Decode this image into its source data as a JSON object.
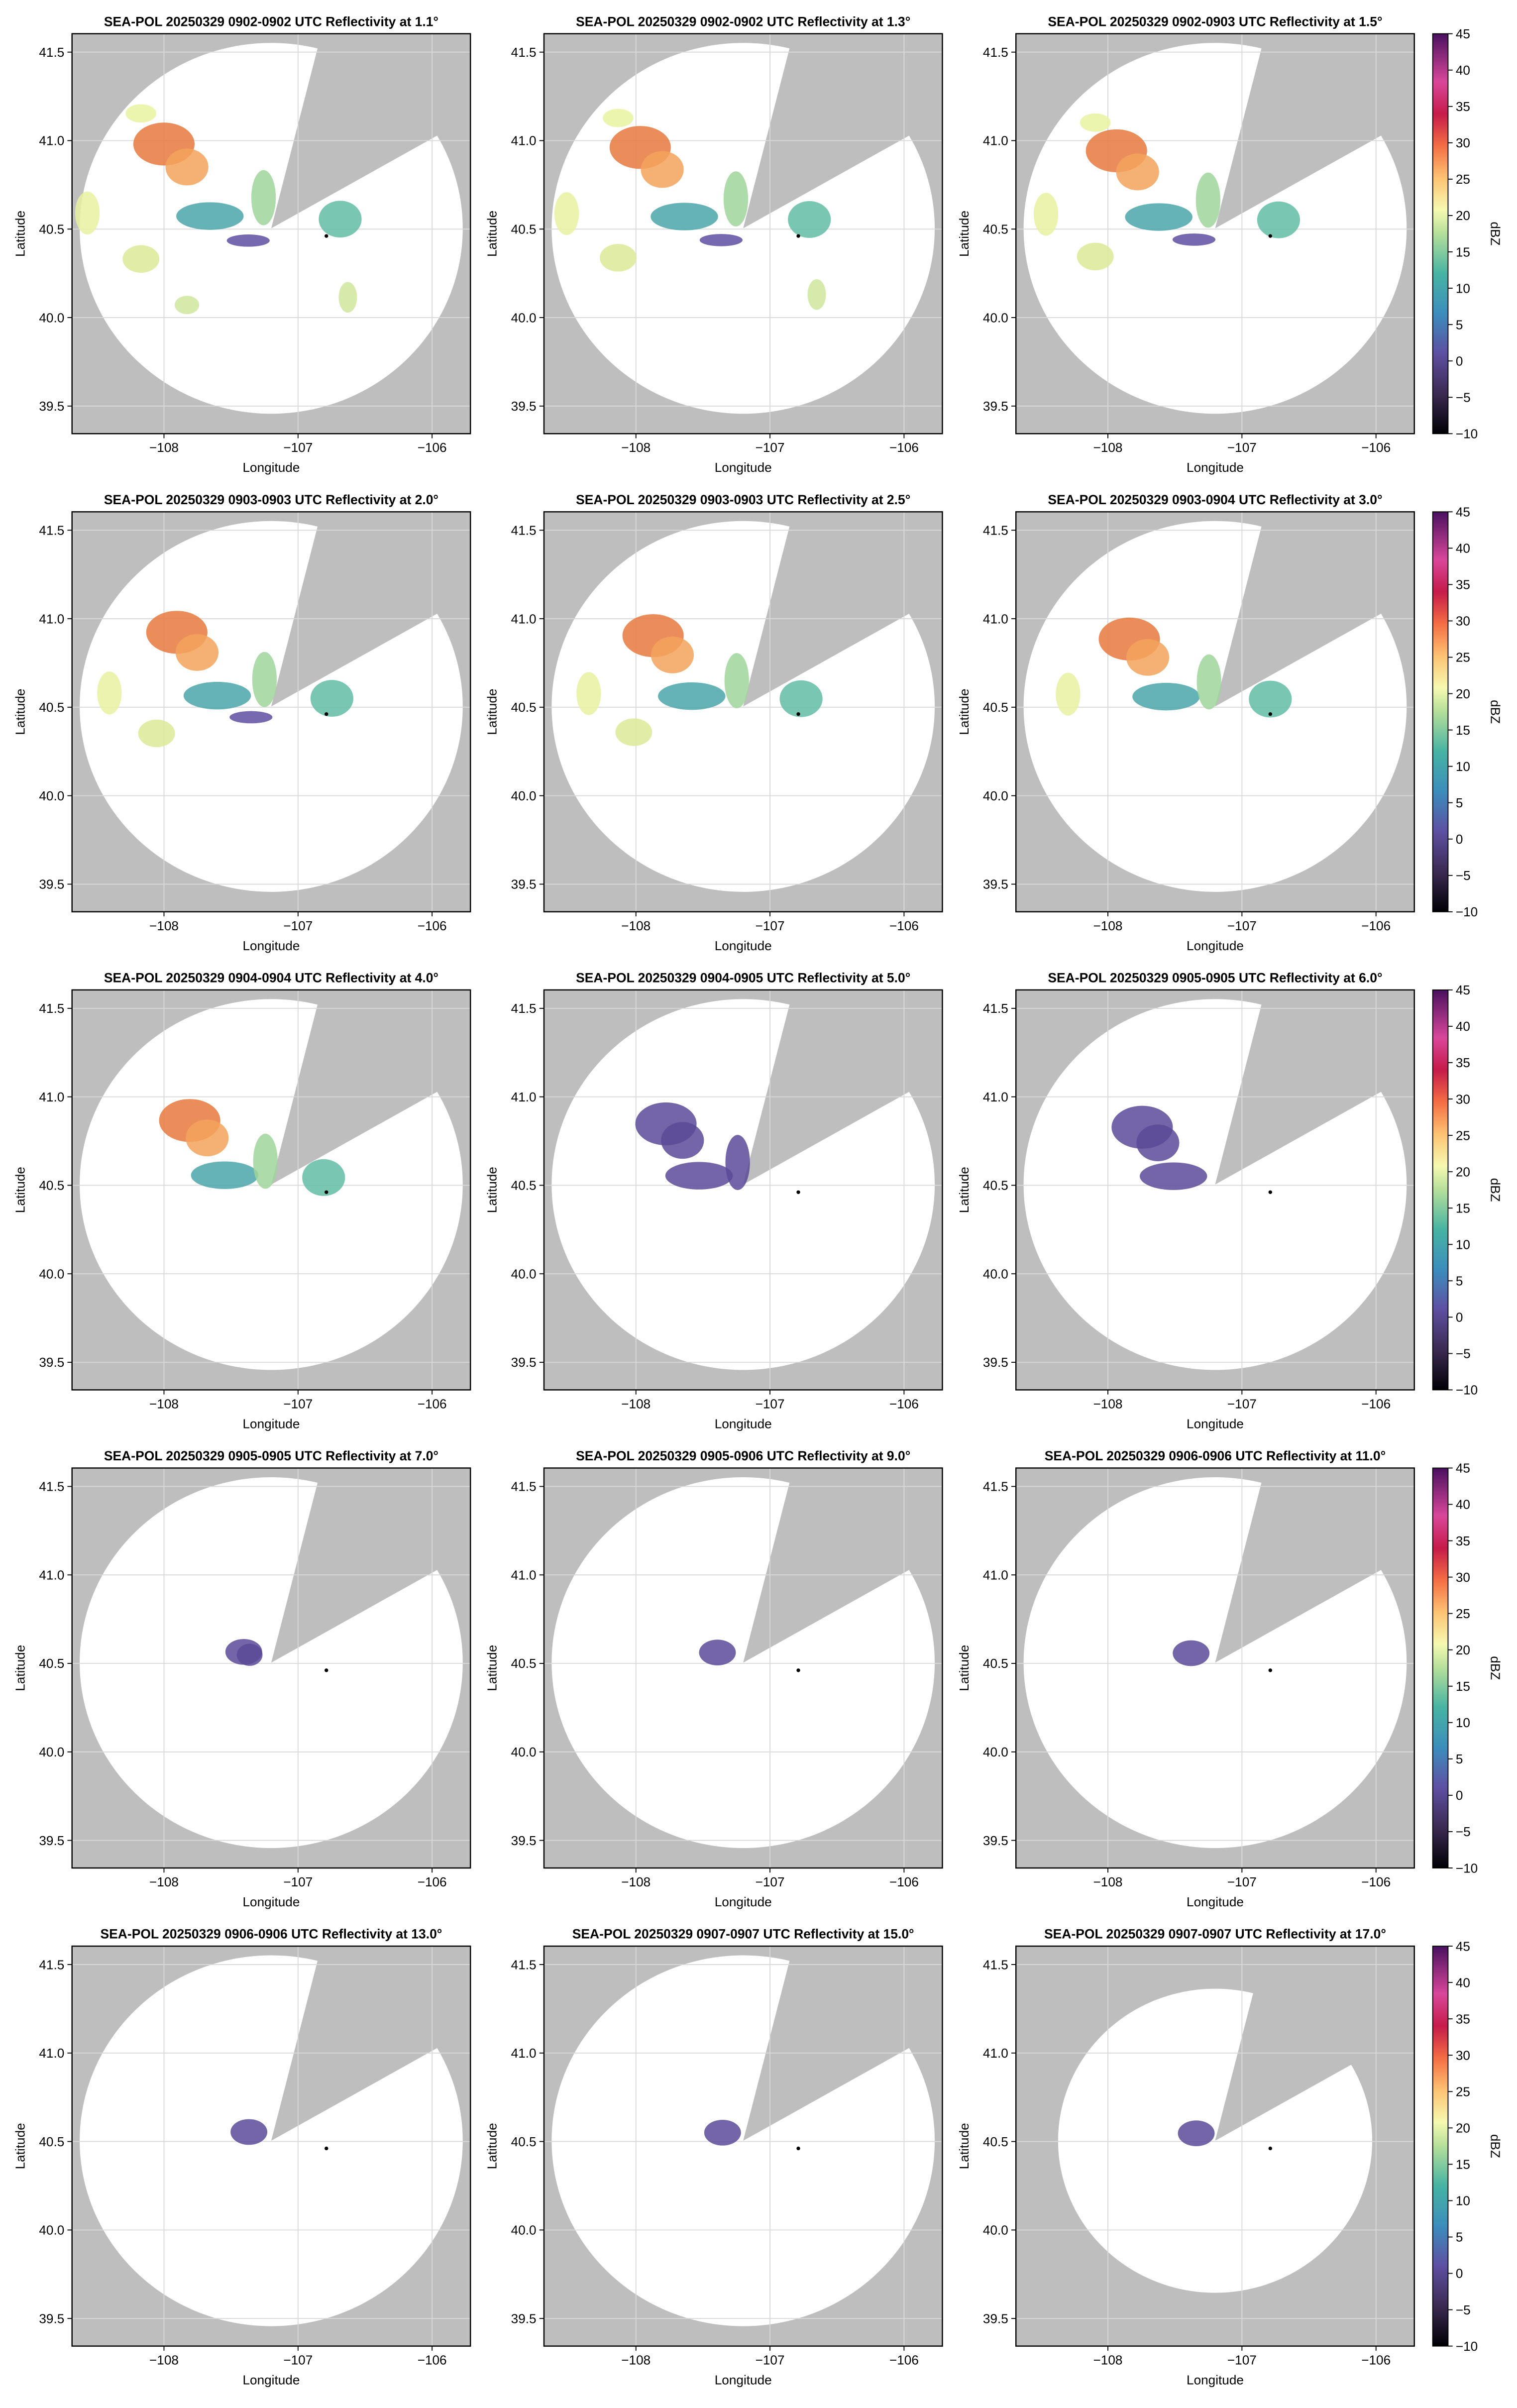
{
  "chart_data": [
    {
      "type": "radar",
      "title": "SEA-POL 20250329 0902-0902 UTC Reflectivity at 1.1°",
      "x_label": "Longitude",
      "y_label": "Latitude",
      "xlim": [
        -108.686,
        -105.714
      ],
      "ylim": [
        39.344,
        41.604
      ],
      "xticks": [
        {
          "value": -108,
          "label": "−108"
        },
        {
          "value": -107,
          "label": "−107"
        },
        {
          "value": -106,
          "label": "−106"
        }
      ],
      "yticks": [
        39.5,
        {
          "value": 40,
          "label": "40.0"
        },
        40.5,
        {
          "value": 41,
          "label": "41.0"
        },
        41.5
      ],
      "grid": true
    },
    {
      "type": "radar",
      "title": "SEA-POL 20250329 0902-0902 UTC Reflectivity at 1.3°",
      "x_label": "Longitude",
      "y_label": "Latitude",
      "xlim": [
        -108.686,
        -105.714
      ],
      "ylim": [
        39.344,
        41.604
      ],
      "xticks": [
        {
          "value": -108,
          "label": "−108"
        },
        {
          "value": -107,
          "label": "−107"
        },
        {
          "value": -106,
          "label": "−106"
        }
      ],
      "yticks": [
        39.5,
        {
          "value": 40,
          "label": "40.0"
        },
        40.5,
        {
          "value": 41,
          "label": "41.0"
        },
        41.5
      ],
      "grid": true
    },
    {
      "type": "radar",
      "title": "SEA-POL 20250329 0902-0903 UTC Reflectivity at 1.5°",
      "x_label": "Longitude",
      "y_label": "Latitude",
      "xlim": [
        -108.686,
        -105.714
      ],
      "ylim": [
        39.344,
        41.604
      ],
      "xticks": [
        {
          "value": -108,
          "label": "−108"
        },
        {
          "value": -107,
          "label": "−107"
        },
        {
          "value": -106,
          "label": "−106"
        }
      ],
      "yticks": [
        39.5,
        {
          "value": 40,
          "label": "40.0"
        },
        40.5,
        {
          "value": 41,
          "label": "41.0"
        },
        41.5
      ],
      "grid": true,
      "colorbar": {
        "label": "dBZ",
        "lim": [
          -10,
          45
        ],
        "ticks": [
          {
            "value": -10,
            "label": "−10"
          },
          {
            "value": -5,
            "label": "−5"
          },
          0,
          5,
          10,
          15,
          20,
          25,
          30,
          35,
          40,
          45
        ]
      }
    },
    {
      "type": "radar",
      "title": "SEA-POL 20250329 0903-0903 UTC Reflectivity at 2.0°",
      "x_label": "Longitude",
      "y_label": "Latitude",
      "xlim": [
        -108.686,
        -105.714
      ],
      "ylim": [
        39.344,
        41.604
      ],
      "xticks": [
        {
          "value": -108,
          "label": "−108"
        },
        {
          "value": -107,
          "label": "−107"
        },
        {
          "value": -106,
          "label": "−106"
        }
      ],
      "yticks": [
        39.5,
        {
          "value": 40,
          "label": "40.0"
        },
        40.5,
        {
          "value": 41,
          "label": "41.0"
        },
        41.5
      ],
      "grid": true
    },
    {
      "type": "radar",
      "title": "SEA-POL 20250329 0903-0903 UTC Reflectivity at 2.5°",
      "x_label": "Longitude",
      "y_label": "Latitude",
      "xlim": [
        -108.686,
        -105.714
      ],
      "ylim": [
        39.344,
        41.604
      ],
      "xticks": [
        {
          "value": -108,
          "label": "−108"
        },
        {
          "value": -107,
          "label": "−107"
        },
        {
          "value": -106,
          "label": "−106"
        }
      ],
      "yticks": [
        39.5,
        {
          "value": 40,
          "label": "40.0"
        },
        40.5,
        {
          "value": 41,
          "label": "41.0"
        },
        41.5
      ],
      "grid": true
    },
    {
      "type": "radar",
      "title": "SEA-POL 20250329 0903-0904 UTC Reflectivity at 3.0°",
      "x_label": "Longitude",
      "y_label": "Latitude",
      "xlim": [
        -108.686,
        -105.714
      ],
      "ylim": [
        39.344,
        41.604
      ],
      "xticks": [
        {
          "value": -108,
          "label": "−108"
        },
        {
          "value": -107,
          "label": "−107"
        },
        {
          "value": -106,
          "label": "−106"
        }
      ],
      "yticks": [
        39.5,
        {
          "value": 40,
          "label": "40.0"
        },
        40.5,
        {
          "value": 41,
          "label": "41.0"
        },
        41.5
      ],
      "grid": true,
      "colorbar": {
        "label": "dBZ",
        "lim": [
          -10,
          45
        ],
        "ticks": [
          {
            "value": -10,
            "label": "−10"
          },
          {
            "value": -5,
            "label": "−5"
          },
          0,
          5,
          10,
          15,
          20,
          25,
          30,
          35,
          40,
          45
        ]
      }
    },
    {
      "type": "radar",
      "title": "SEA-POL 20250329 0904-0904 UTC Reflectivity at 4.0°",
      "x_label": "Longitude",
      "y_label": "Latitude",
      "xlim": [
        -108.686,
        -105.714
      ],
      "ylim": [
        39.344,
        41.604
      ],
      "xticks": [
        {
          "value": -108,
          "label": "−108"
        },
        {
          "value": -107,
          "label": "−107"
        },
        {
          "value": -106,
          "label": "−106"
        }
      ],
      "yticks": [
        39.5,
        {
          "value": 40,
          "label": "40.0"
        },
        40.5,
        {
          "value": 41,
          "label": "41.0"
        },
        41.5
      ],
      "grid": true
    },
    {
      "type": "radar",
      "title": "SEA-POL 20250329 0904-0905 UTC Reflectivity at 5.0°",
      "x_label": "Longitude",
      "y_label": "Latitude",
      "xlim": [
        -108.686,
        -105.714
      ],
      "ylim": [
        39.344,
        41.604
      ],
      "xticks": [
        {
          "value": -108,
          "label": "−108"
        },
        {
          "value": -107,
          "label": "−107"
        },
        {
          "value": -106,
          "label": "−106"
        }
      ],
      "yticks": [
        39.5,
        {
          "value": 40,
          "label": "40.0"
        },
        40.5,
        {
          "value": 41,
          "label": "41.0"
        },
        41.5
      ],
      "grid": true
    },
    {
      "type": "radar",
      "title": "SEA-POL 20250329 0905-0905 UTC Reflectivity at 6.0°",
      "x_label": "Longitude",
      "y_label": "Latitude",
      "xlim": [
        -108.686,
        -105.714
      ],
      "ylim": [
        39.344,
        41.604
      ],
      "xticks": [
        {
          "value": -108,
          "label": "−108"
        },
        {
          "value": -107,
          "label": "−107"
        },
        {
          "value": -106,
          "label": "−106"
        }
      ],
      "yticks": [
        39.5,
        {
          "value": 40,
          "label": "40.0"
        },
        40.5,
        {
          "value": 41,
          "label": "41.0"
        },
        41.5
      ],
      "grid": true,
      "colorbar": {
        "label": "dBZ",
        "lim": [
          -10,
          45
        ],
        "ticks": [
          {
            "value": -10,
            "label": "−10"
          },
          {
            "value": -5,
            "label": "−5"
          },
          0,
          5,
          10,
          15,
          20,
          25,
          30,
          35,
          40,
          45
        ]
      }
    },
    {
      "type": "radar",
      "title": "SEA-POL 20250329 0905-0905 UTC Reflectivity at 7.0°",
      "x_label": "Longitude",
      "y_label": "Latitude",
      "xlim": [
        -108.686,
        -105.714
      ],
      "ylim": [
        39.344,
        41.604
      ],
      "xticks": [
        {
          "value": -108,
          "label": "−108"
        },
        {
          "value": -107,
          "label": "−107"
        },
        {
          "value": -106,
          "label": "−106"
        }
      ],
      "yticks": [
        39.5,
        {
          "value": 40,
          "label": "40.0"
        },
        40.5,
        {
          "value": 41,
          "label": "41.0"
        },
        41.5
      ],
      "grid": true
    },
    {
      "type": "radar",
      "title": "SEA-POL 20250329 0905-0906 UTC Reflectivity at 9.0°",
      "x_label": "Longitude",
      "y_label": "Latitude",
      "xlim": [
        -108.686,
        -105.714
      ],
      "ylim": [
        39.344,
        41.604
      ],
      "xticks": [
        {
          "value": -108,
          "label": "−108"
        },
        {
          "value": -107,
          "label": "−107"
        },
        {
          "value": -106,
          "label": "−106"
        }
      ],
      "yticks": [
        39.5,
        {
          "value": 40,
          "label": "40.0"
        },
        40.5,
        {
          "value": 41,
          "label": "41.0"
        },
        41.5
      ],
      "grid": true
    },
    {
      "type": "radar",
      "title": "SEA-POL 20250329 0906-0906 UTC Reflectivity at 11.0°",
      "x_label": "Longitude",
      "y_label": "Latitude",
      "xlim": [
        -108.686,
        -105.714
      ],
      "ylim": [
        39.344,
        41.604
      ],
      "xticks": [
        {
          "value": -108,
          "label": "−108"
        },
        {
          "value": -107,
          "label": "−107"
        },
        {
          "value": -106,
          "label": "−106"
        }
      ],
      "yticks": [
        39.5,
        {
          "value": 40,
          "label": "40.0"
        },
        40.5,
        {
          "value": 41,
          "label": "41.0"
        },
        41.5
      ],
      "grid": true,
      "colorbar": {
        "label": "dBZ",
        "lim": [
          -10,
          45
        ],
        "ticks": [
          {
            "value": -10,
            "label": "−10"
          },
          {
            "value": -5,
            "label": "−5"
          },
          0,
          5,
          10,
          15,
          20,
          25,
          30,
          35,
          40,
          45
        ]
      }
    },
    {
      "type": "radar",
      "title": "SEA-POL 20250329 0906-0906 UTC Reflectivity at 13.0°",
      "x_label": "Longitude",
      "y_label": "Latitude",
      "xlim": [
        -108.686,
        -105.714
      ],
      "ylim": [
        39.344,
        41.604
      ],
      "xticks": [
        {
          "value": -108,
          "label": "−108"
        },
        {
          "value": -107,
          "label": "−107"
        },
        {
          "value": -106,
          "label": "−106"
        }
      ],
      "yticks": [
        39.5,
        {
          "value": 40,
          "label": "40.0"
        },
        40.5,
        {
          "value": 41,
          "label": "41.0"
        },
        41.5
      ],
      "grid": true
    },
    {
      "type": "radar",
      "title": "SEA-POL 20250329 0907-0907 UTC Reflectivity at 15.0°",
      "x_label": "Longitude",
      "y_label": "Latitude",
      "xlim": [
        -108.686,
        -105.714
      ],
      "ylim": [
        39.344,
        41.604
      ],
      "xticks": [
        {
          "value": -108,
          "label": "−108"
        },
        {
          "value": -107,
          "label": "−107"
        },
        {
          "value": -106,
          "label": "−106"
        }
      ],
      "yticks": [
        39.5,
        {
          "value": 40,
          "label": "40.0"
        },
        40.5,
        {
          "value": 41,
          "label": "41.0"
        },
        41.5
      ],
      "grid": true
    },
    {
      "type": "radar",
      "title": "SEA-POL 20250329 0907-0907 UTC Reflectivity at 17.0°",
      "x_label": "Longitude",
      "y_label": "Latitude",
      "xlim": [
        -108.686,
        -105.714
      ],
      "ylim": [
        39.344,
        41.604
      ],
      "xticks": [
        {
          "value": -108,
          "label": "−108"
        },
        {
          "value": -107,
          "label": "−107"
        },
        {
          "value": -106,
          "label": "−106"
        }
      ],
      "yticks": [
        39.5,
        {
          "value": 40,
          "label": "40.0"
        },
        40.5,
        {
          "value": 41,
          "label": "41.0"
        },
        41.5
      ],
      "grid": true,
      "colorbar": {
        "label": "dBZ",
        "lim": [
          -10,
          45
        ],
        "ticks": [
          {
            "value": -10,
            "label": "−10"
          },
          {
            "value": -5,
            "label": "−5"
          },
          0,
          5,
          10,
          15,
          20,
          25,
          30,
          35,
          40,
          45
        ]
      }
    }
  ]
}
